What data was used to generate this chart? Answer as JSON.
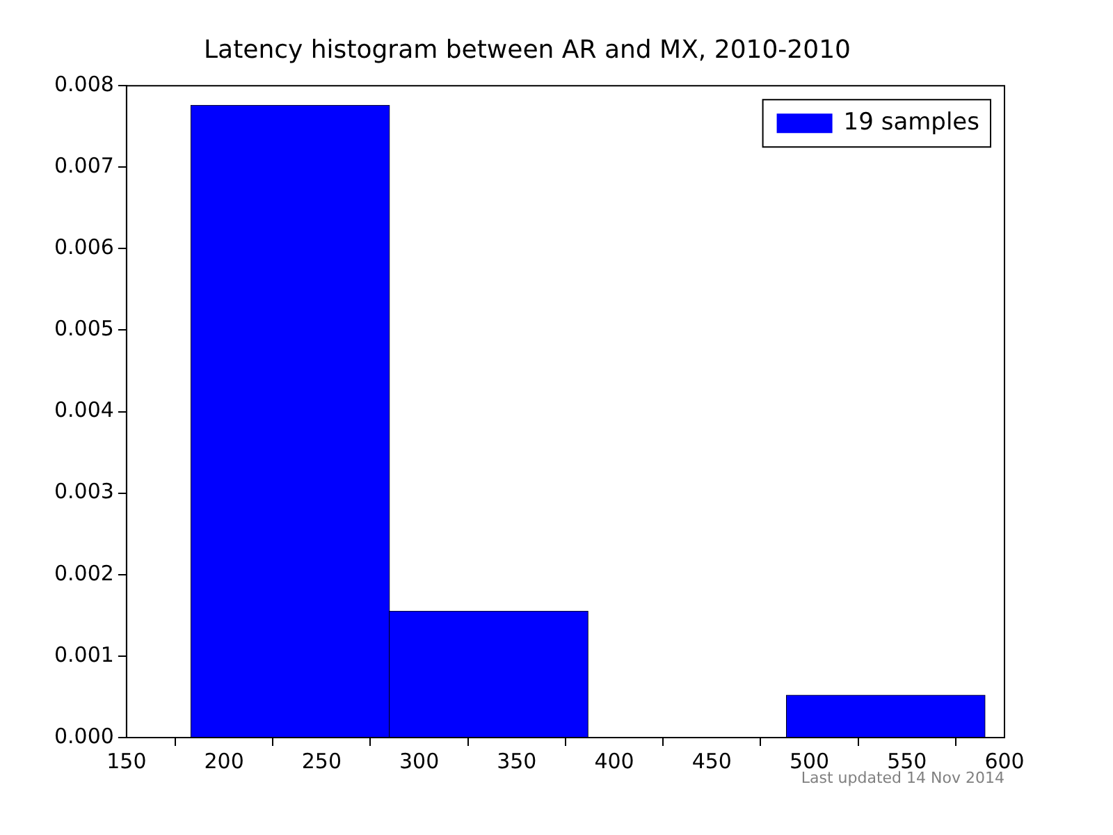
{
  "chart_data": {
    "type": "histogram",
    "title": "Latency histogram between AR and MX, 2010-2010",
    "bins": [
      183,
      284.75,
      386.5,
      488.25,
      590
    ],
    "series": [
      {
        "name": "19 samples",
        "color": "#0000ff",
        "values": [
          0.00776,
          0.00155,
          0,
          0.00052
        ]
      }
    ],
    "xlim": [
      150,
      600
    ],
    "xticks": [
      150,
      200,
      250,
      300,
      350,
      400,
      450,
      500,
      550,
      600
    ],
    "ylim": [
      0,
      0.008
    ],
    "yticks": [
      {
        "value": 0,
        "label": "0.000"
      },
      {
        "value": 0.001,
        "label": "0.001"
      },
      {
        "value": 0.002,
        "label": "0.002"
      },
      {
        "value": 0.003,
        "label": "0.003"
      },
      {
        "value": 0.004,
        "label": "0.004"
      },
      {
        "value": 0.005,
        "label": "0.005"
      },
      {
        "value": 0.006,
        "label": "0.006"
      },
      {
        "value": 0.007,
        "label": "0.007"
      },
      {
        "value": 0.008,
        "label": "0.008"
      }
    ],
    "legend": "top right",
    "grid": false,
    "annotations": [
      "Last updated 14 Nov 2014"
    ]
  }
}
